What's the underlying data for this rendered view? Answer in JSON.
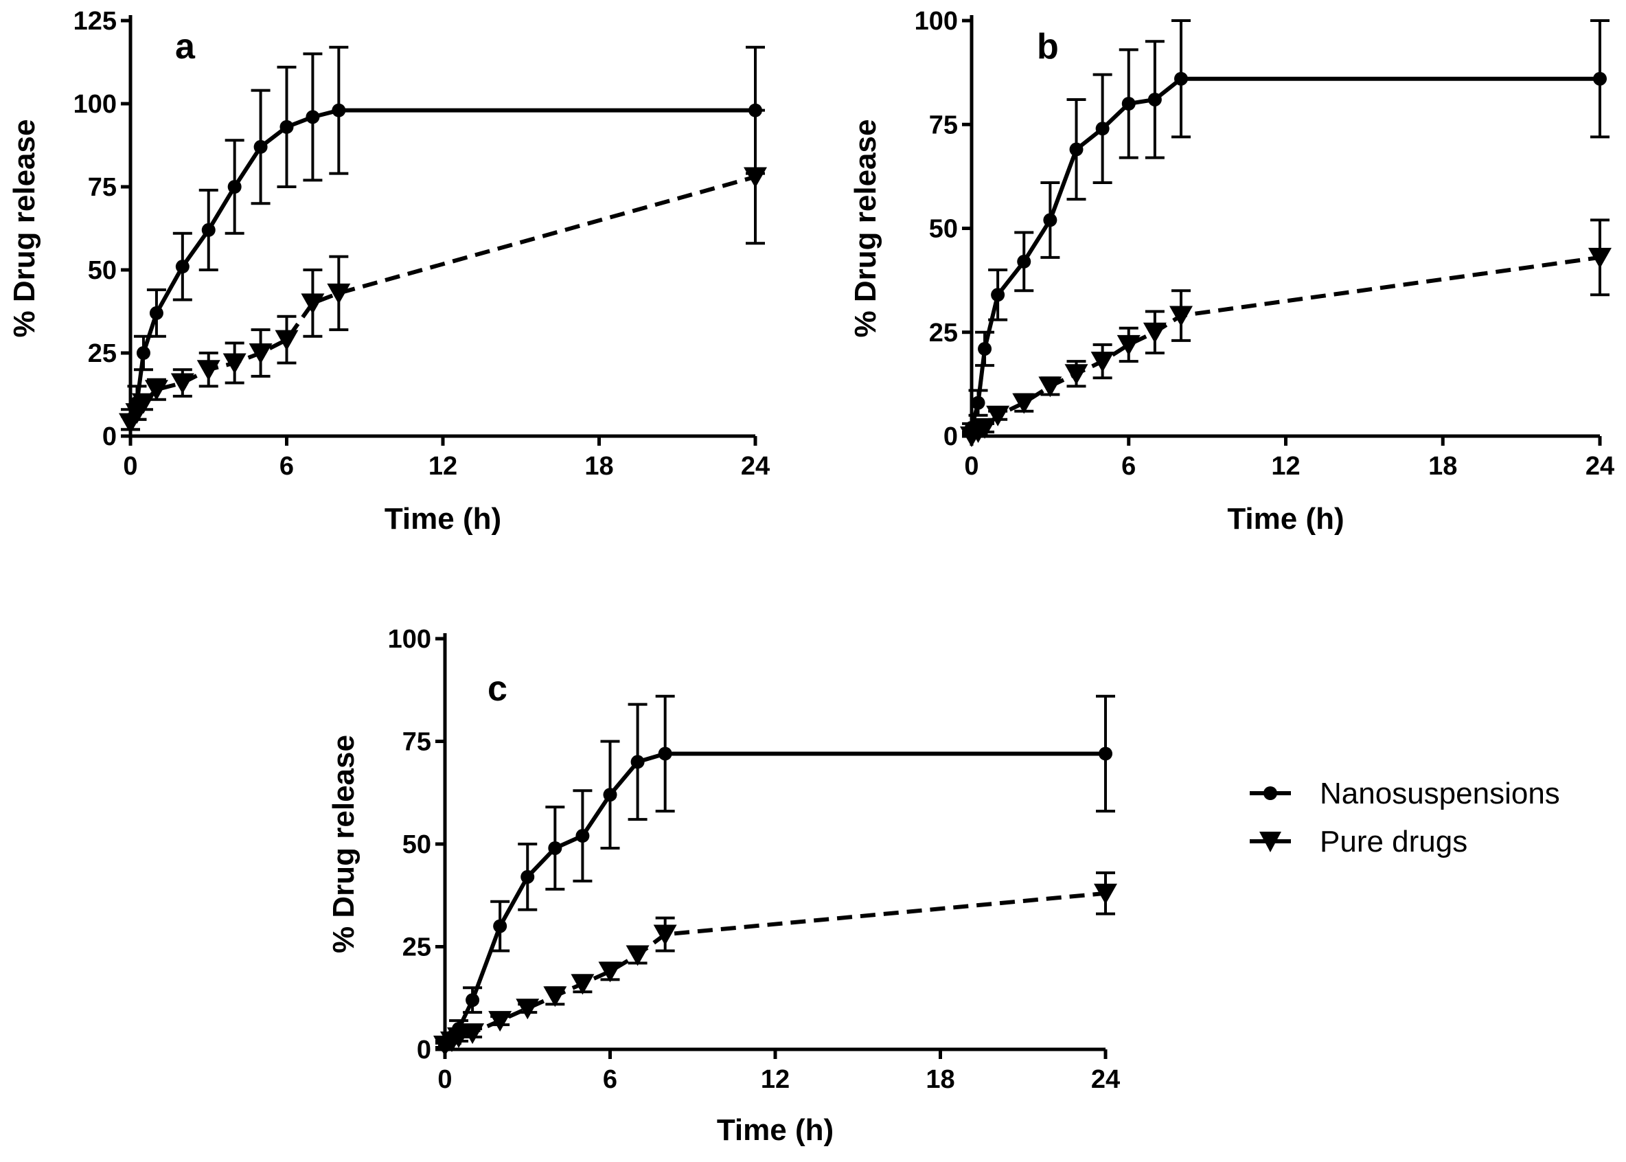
{
  "chart_data": [
    {
      "type": "line",
      "panel_label": "a",
      "xlabel": "Time (h)",
      "ylabel": "% Drug release",
      "xlim": [
        0,
        24
      ],
      "ylim": [
        0,
        125
      ],
      "xticks": [
        0,
        6,
        12,
        18,
        24
      ],
      "yticks": [
        0,
        25,
        50,
        75,
        100,
        125
      ],
      "series": [
        {
          "name": "Nanosuspensions",
          "marker": "circle",
          "line_style": "solid",
          "x": [
            0,
            0.25,
            0.5,
            1,
            2,
            3,
            4,
            5,
            6,
            7,
            8,
            24
          ],
          "y": [
            5,
            10,
            25,
            37,
            51,
            62,
            75,
            87,
            93,
            96,
            98,
            98
          ],
          "err": [
            3,
            5,
            5,
            7,
            10,
            12,
            14,
            17,
            18,
            19,
            19,
            19
          ]
        },
        {
          "name": "Pure drugs",
          "marker": "triangle-down",
          "line_style": "dashed",
          "x": [
            0,
            0.25,
            0.5,
            1,
            2,
            3,
            4,
            5,
            6,
            7,
            8,
            24
          ],
          "y": [
            4,
            7,
            10,
            14,
            16,
            20,
            22,
            25,
            29,
            40,
            43,
            78
          ],
          "err": [
            2,
            2,
            2,
            3,
            4,
            5,
            6,
            7,
            7,
            10,
            11,
            20
          ]
        }
      ]
    },
    {
      "type": "line",
      "panel_label": "b",
      "xlabel": "Time (h)",
      "ylabel": "% Drug release",
      "xlim": [
        0,
        24
      ],
      "ylim": [
        0,
        100
      ],
      "xticks": [
        0,
        6,
        12,
        18,
        24
      ],
      "yticks": [
        0,
        25,
        50,
        75,
        100
      ],
      "series": [
        {
          "name": "Nanosuspensions",
          "marker": "circle",
          "line_style": "solid",
          "x": [
            0,
            0.25,
            0.5,
            1,
            2,
            3,
            4,
            5,
            6,
            7,
            8,
            24
          ],
          "y": [
            2,
            8,
            21,
            34,
            42,
            52,
            69,
            74,
            80,
            81,
            86,
            86
          ],
          "err": [
            1,
            3,
            4,
            6,
            7,
            9,
            12,
            13,
            13,
            14,
            14,
            14
          ]
        },
        {
          "name": "Pure drugs",
          "marker": "triangle-down",
          "line_style": "dashed",
          "x": [
            0,
            0.25,
            0.5,
            1,
            2,
            3,
            4,
            5,
            6,
            7,
            8,
            24
          ],
          "y": [
            0,
            1,
            2,
            5,
            8,
            12,
            15,
            18,
            22,
            25,
            29,
            43
          ],
          "err": [
            0.5,
            0.5,
            1,
            1,
            2,
            2,
            3,
            4,
            4,
            5,
            6,
            9
          ]
        }
      ]
    },
    {
      "type": "line",
      "panel_label": "c",
      "xlabel": "Time (h)",
      "ylabel": "% Drug release",
      "xlim": [
        0,
        24
      ],
      "ylim": [
        0,
        100
      ],
      "xticks": [
        0,
        6,
        12,
        18,
        24
      ],
      "yticks": [
        0,
        25,
        50,
        75,
        100
      ],
      "series": [
        {
          "name": "Nanosuspensions",
          "marker": "circle",
          "line_style": "solid",
          "x": [
            0,
            0.25,
            0.5,
            1,
            2,
            3,
            4,
            5,
            6,
            7,
            8,
            24
          ],
          "y": [
            1,
            3,
            5,
            12,
            30,
            42,
            49,
            52,
            62,
            70,
            72,
            72
          ],
          "err": [
            1,
            1,
            2,
            3,
            6,
            8,
            10,
            11,
            13,
            14,
            14,
            14
          ]
        },
        {
          "name": "Pure drugs",
          "marker": "triangle-down",
          "line_style": "dashed",
          "x": [
            0,
            0.25,
            0.5,
            1,
            2,
            3,
            4,
            5,
            6,
            7,
            8,
            24
          ],
          "y": [
            1,
            2,
            3,
            4,
            7,
            10,
            13,
            16,
            19,
            23,
            28,
            38
          ],
          "err": [
            0.5,
            0.5,
            1,
            1,
            1,
            1,
            2,
            2,
            2,
            2,
            4,
            5
          ]
        }
      ]
    }
  ],
  "legend": {
    "placement": "right of panel c",
    "items": [
      {
        "label": "Nanosuspensions",
        "marker": "circle",
        "line_style": "solid"
      },
      {
        "label": "Pure drugs",
        "marker": "triangle-down",
        "line_style": "dashed"
      }
    ]
  },
  "colors": {
    "ink": "#000000",
    "background": "#ffffff"
  }
}
